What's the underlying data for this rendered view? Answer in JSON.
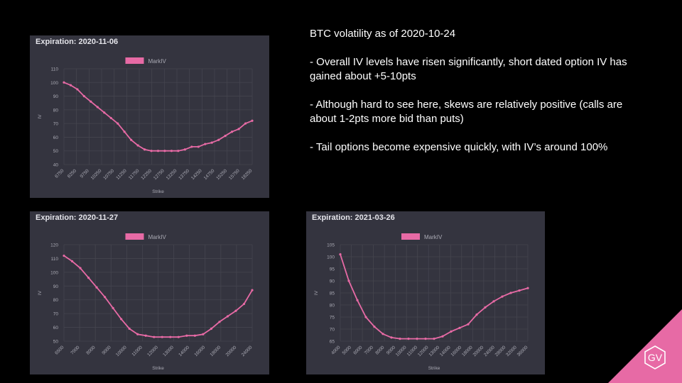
{
  "slide": {
    "heading": "BTC volatility as of 2020-10-24",
    "bullets": [
      "- Overall IV levels have risen significantly, short dated option IV has gained about +5-10pts",
      "- Although hard to see here, skews are relatively positive (calls are about 1-2pts more bid than puts)",
      "- Tail options become expensive quickly, with IV’s around 100%"
    ],
    "logo_text": "GV",
    "logo_color": "#e76aa5"
  },
  "colors": {
    "panel_bg": "#34343f",
    "series": "#e76aa5",
    "text": "#aaaab4",
    "grid": "#45454f"
  },
  "chart_data": [
    {
      "type": "line",
      "title": "Expiration: 2020-11-06",
      "xlabel": "Strike",
      "ylabel": "IV",
      "ylim": [
        40,
        110
      ],
      "yticks": [
        40,
        50,
        60,
        70,
        80,
        90,
        100,
        110
      ],
      "x": [
        6750,
        7250,
        7750,
        8250,
        8750,
        9250,
        9750,
        10250,
        10750,
        11250,
        11750,
        12250,
        12750,
        13250,
        13750,
        14250,
        14750,
        15250,
        15750,
        16250,
        16750,
        17250,
        17750,
        18250,
        18750,
        19250,
        19750,
        20250,
        20750
      ],
      "xtick_labels": [
        "6750",
        "8250",
        "9750",
        "10250",
        "10750",
        "11250",
        "11750",
        "12250",
        "12750",
        "13250",
        "13750",
        "14250",
        "14750",
        "15250",
        "15750",
        "18250"
      ],
      "series": [
        {
          "name": "MarkIV",
          "color": "#e76aa5",
          "values": [
            100,
            98,
            95,
            90,
            86,
            82,
            78,
            74,
            70,
            64,
            58,
            54,
            51,
            50,
            50,
            50,
            50,
            50,
            51,
            53,
            53,
            55,
            56,
            58,
            61,
            64,
            66,
            70,
            72
          ]
        }
      ],
      "legend": "top-center",
      "grid": true
    },
    {
      "type": "line",
      "title": "Expiration: 2020-11-27",
      "xlabel": "Strike",
      "ylabel": "IV",
      "ylim": [
        50,
        120
      ],
      "yticks": [
        50,
        60,
        70,
        80,
        90,
        100,
        110,
        120
      ],
      "x": [
        6500,
        7000,
        7500,
        8000,
        8500,
        9000,
        9500,
        10000,
        10500,
        11000,
        11500,
        12000,
        12500,
        13000,
        13500,
        14000,
        15000,
        16000,
        17000,
        18000,
        19000,
        20000,
        22000,
        24000
      ],
      "xtick_labels": [
        "6500",
        "7000",
        "8000",
        "9000",
        "10000",
        "11000",
        "12000",
        "13000",
        "14000",
        "16000",
        "18000",
        "20000",
        "24000"
      ],
      "series": [
        {
          "name": "MarkIV",
          "color": "#e76aa5",
          "values": [
            112,
            108,
            103,
            96,
            89,
            82,
            74,
            66,
            59,
            55,
            54,
            53,
            53,
            53,
            53,
            54,
            54,
            55,
            59,
            64,
            68,
            72,
            77,
            87
          ]
        }
      ],
      "legend": "top-center",
      "grid": true
    },
    {
      "type": "line",
      "title": "Expiration: 2021-03-26",
      "xlabel": "Strike",
      "ylabel": "IV",
      "ylim": [
        65,
        105
      ],
      "yticks": [
        65,
        70,
        75,
        80,
        85,
        90,
        95,
        100,
        105
      ],
      "x": [
        4000,
        5000,
        6000,
        7000,
        8000,
        9000,
        10000,
        11000,
        12000,
        13000,
        14000,
        15000,
        16000,
        17000,
        18000,
        20000,
        22000,
        24000,
        26000,
        28000,
        30000,
        32000,
        36000
      ],
      "xtick_labels": [
        "4000",
        "5000",
        "6000",
        "7000",
        "8000",
        "9000",
        "10000",
        "11000",
        "12000",
        "13000",
        "14000",
        "16000",
        "18000",
        "20000",
        "24000",
        "28000",
        "32000",
        "36000"
      ],
      "series": [
        {
          "name": "MarkIV",
          "color": "#e76aa5",
          "values": [
            101,
            90,
            82,
            75,
            71,
            68,
            66.5,
            66,
            66,
            66,
            66,
            66,
            67,
            69,
            70.5,
            72,
            76,
            79,
            81.5,
            83.5,
            85,
            86,
            87
          ]
        }
      ],
      "legend": "top-center",
      "grid": true
    }
  ]
}
